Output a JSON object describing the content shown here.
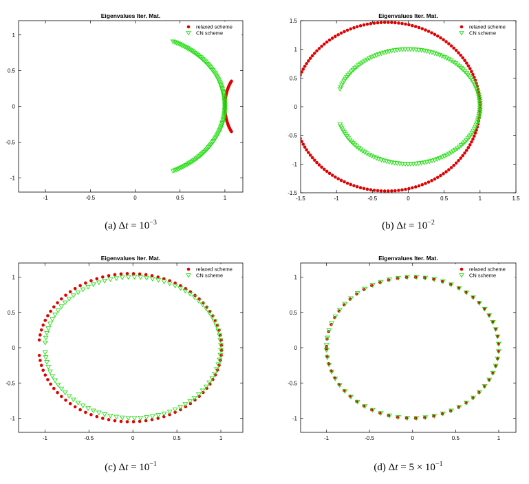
{
  "chart_data": [
    {
      "type": "scatter",
      "title": "Eigenvalues Iter. Mat.",
      "caption": {
        "label": "(a)",
        "lhs": "Δ",
        "var": "t",
        "eq": "=",
        "base": "10",
        "exp": "−3"
      },
      "xlim": [
        -1.3,
        1.2
      ],
      "ylim": [
        -1.2,
        1.2
      ],
      "xticks": [
        -1,
        -0.5,
        0,
        0.5,
        1
      ],
      "xticklabels": [
        "-1",
        "-0.5",
        "0",
        "0.5",
        "1"
      ],
      "yticks": [
        -1,
        -0.5,
        0,
        0.5,
        1
      ],
      "yticklabels": [
        "-1",
        "-0.5",
        "0",
        "0.5",
        "1"
      ],
      "legend": {
        "position": "top-right",
        "entries": [
          "relaxed scheme",
          "CN scheme"
        ]
      },
      "series": [
        {
          "name": "relaxed scheme",
          "marker": "dot",
          "color": "#e00000",
          "arcs": [
            {
              "cx": 1.25,
              "cy": 0,
              "rx": 0.25,
              "ry": 0.5,
              "from": 135,
              "to": 225,
              "n": 40
            }
          ]
        },
        {
          "name": "CN scheme",
          "marker": "triangle-down",
          "color": "#22dd11",
          "arcs": [
            {
              "cx": 0,
              "cy": 0,
              "rx": 1,
              "ry": 1,
              "from": -65,
              "to": 65,
              "n": 110
            }
          ]
        }
      ]
    },
    {
      "type": "scatter",
      "title": "Eigenvalues Iter. Mat.",
      "caption": {
        "label": "(b)",
        "lhs": "Δ",
        "var": "t",
        "eq": "=",
        "base": "10",
        "exp": "−2"
      },
      "xlim": [
        -1.5,
        1.5
      ],
      "ylim": [
        -1.5,
        1.5
      ],
      "xticks": [
        -1.5,
        -1,
        -0.5,
        0,
        0.5,
        1,
        1.5
      ],
      "xticklabels": [
        "-1.5",
        "-1",
        "-0.5",
        "0",
        "0.5",
        "1",
        "1.5"
      ],
      "yticks": [
        -1.5,
        -1,
        -0.5,
        0,
        0.5,
        1,
        1.5
      ],
      "yticklabels": [
        "-1.5",
        "-1",
        "-0.5",
        "0",
        "0.5",
        "1",
        "1.5"
      ],
      "legend": {
        "position": "top-right",
        "entries": [
          "relaxed scheme",
          "CN scheme"
        ]
      },
      "series": [
        {
          "name": "relaxed scheme",
          "marker": "dot",
          "color": "#e00000",
          "arcs": [
            {
              "cx": -0.3,
              "cy": 0,
              "rx": 1.3,
              "ry": 1.47,
              "from": -160,
              "to": 160,
              "n": 150
            }
          ]
        },
        {
          "name": "CN scheme",
          "marker": "triangle-down",
          "color": "#22dd11",
          "arcs": [
            {
              "cx": 0,
              "cy": 0,
              "rx": 1,
              "ry": 1,
              "from": -162,
              "to": 162,
              "n": 150
            }
          ]
        }
      ]
    },
    {
      "type": "scatter",
      "title": "Eigenvalues Iter. Mat.",
      "caption": {
        "label": "(c)",
        "lhs": "Δ",
        "var": "t",
        "eq": "=",
        "base": "10",
        "exp": "−1"
      },
      "xlim": [
        -1.3,
        1.25
      ],
      "ylim": [
        -1.2,
        1.2
      ],
      "xticks": [
        -1,
        -0.5,
        0,
        0.5,
        1
      ],
      "xticklabels": [
        "-1",
        "-0.5",
        "0",
        "0.5",
        "1"
      ],
      "yticks": [
        -1,
        -0.5,
        0,
        0.5,
        1
      ],
      "yticklabels": [
        "-1",
        "-0.5",
        "0",
        "0.5",
        "1"
      ],
      "legend": {
        "position": "top-right",
        "entries": [
          "relaxed scheme",
          "CN scheme"
        ]
      },
      "series": [
        {
          "name": "relaxed scheme",
          "marker": "dot",
          "color": "#e00000",
          "arcs": [
            {
              "cx": -0.03,
              "cy": 0,
              "rx": 1.04,
              "ry": 1.05,
              "from": -174,
              "to": 174,
              "n": 90
            }
          ]
        },
        {
          "name": "CN scheme",
          "marker": "triangle-down",
          "color": "#22dd11",
          "arcs": [
            {
              "cx": 0,
              "cy": 0,
              "rx": 1,
              "ry": 1,
              "from": -176,
              "to": 176,
              "n": 90
            }
          ]
        }
      ]
    },
    {
      "type": "scatter",
      "title": "Eigenvalues Iter. Mat.",
      "caption": {
        "label": "(d)",
        "lhs": "Δ",
        "var": "t",
        "eq": "=",
        "base": "5 × 10",
        "exp": "−1"
      },
      "xlim": [
        -1.3,
        1.2
      ],
      "ylim": [
        -1.2,
        1.2
      ],
      "xticks": [
        -1,
        -0.5,
        0,
        0.5,
        1
      ],
      "xticklabels": [
        "-1",
        "-0.5",
        "0",
        "0.5",
        "1"
      ],
      "yticks": [
        -1,
        -0.5,
        0,
        0.5,
        1
      ],
      "yticklabels": [
        "-1",
        "-0.5",
        "0",
        "0.5",
        "1"
      ],
      "legend": {
        "position": "top-right",
        "entries": [
          "relaxed scheme",
          "CN scheme"
        ]
      },
      "series": [
        {
          "name": "relaxed scheme",
          "marker": "dot",
          "color": "#e00000",
          "arcs": [
            {
              "cx": 0,
              "cy": 0,
              "rx": 1,
              "ry": 1,
              "from": -179,
              "to": 179,
              "n": 60
            }
          ]
        },
        {
          "name": "CN scheme",
          "marker": "triangle-down",
          "color": "#22dd11",
          "arcs": [
            {
              "cx": 0,
              "cy": 0,
              "rx": 1,
              "ry": 1,
              "from": -178,
              "to": 178,
              "n": 60
            }
          ]
        }
      ]
    }
  ]
}
